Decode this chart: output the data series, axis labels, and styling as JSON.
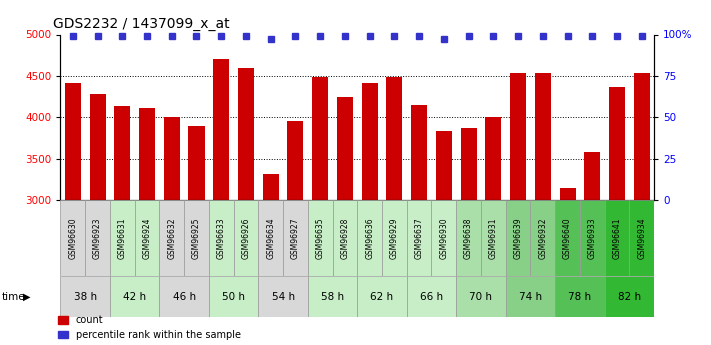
{
  "title": "GDS2232 / 1437099_x_at",
  "samples": [
    "GSM96630",
    "GSM96923",
    "GSM96631",
    "GSM96924",
    "GSM96632",
    "GSM96925",
    "GSM96633",
    "GSM96926",
    "GSM96634",
    "GSM96927",
    "GSM96635",
    "GSM96928",
    "GSM96636",
    "GSM96929",
    "GSM96637",
    "GSM96930",
    "GSM96638",
    "GSM96931",
    "GSM96639",
    "GSM96932",
    "GSM96640",
    "GSM96933",
    "GSM96641",
    "GSM96934"
  ],
  "counts": [
    4420,
    4285,
    4140,
    4110,
    4000,
    3900,
    4700,
    4600,
    3320,
    3960,
    4490,
    4250,
    4420,
    4490,
    4150,
    3840,
    3870,
    4000,
    4530,
    4530,
    3150,
    3580,
    4360,
    4530
  ],
  "percentile_ranks": [
    99,
    99,
    99,
    99,
    99,
    99,
    99,
    99,
    97,
    99,
    99,
    99,
    99,
    99,
    99,
    97,
    99,
    99,
    99,
    99,
    99,
    99,
    99,
    99
  ],
  "time_groups": [
    {
      "label": "38 h",
      "indices": [
        0,
        1
      ],
      "color": "#d8d8d8"
    },
    {
      "label": "42 h",
      "indices": [
        2,
        3
      ],
      "color": "#c8eec8"
    },
    {
      "label": "46 h",
      "indices": [
        4,
        5
      ],
      "color": "#d8d8d8"
    },
    {
      "label": "50 h",
      "indices": [
        6,
        7
      ],
      "color": "#c8eec8"
    },
    {
      "label": "54 h",
      "indices": [
        8,
        9
      ],
      "color": "#d8d8d8"
    },
    {
      "label": "58 h",
      "indices": [
        10,
        11
      ],
      "color": "#c8eec8"
    },
    {
      "label": "62 h",
      "indices": [
        12,
        13
      ],
      "color": "#c8eec8"
    },
    {
      "label": "66 h",
      "indices": [
        14,
        15
      ],
      "color": "#c8eec8"
    },
    {
      "label": "70 h",
      "indices": [
        16,
        17
      ],
      "color": "#aadfaa"
    },
    {
      "label": "74 h",
      "indices": [
        18,
        19
      ],
      "color": "#88d088"
    },
    {
      "label": "78 h",
      "indices": [
        20,
        21
      ],
      "color": "#55c055"
    },
    {
      "label": "82 h",
      "indices": [
        22,
        23
      ],
      "color": "#33b833"
    }
  ],
  "sample_bg_colors": [
    "#d8d8d8",
    "#d8d8d8",
    "#c8eec8",
    "#c8eec8",
    "#d8d8d8",
    "#d8d8d8",
    "#c8eec8",
    "#c8eec8",
    "#d8d8d8",
    "#d8d8d8",
    "#c8eec8",
    "#c8eec8",
    "#c8eec8",
    "#c8eec8",
    "#c8eec8",
    "#c8eec8",
    "#aadfaa",
    "#aadfaa",
    "#88d088",
    "#88d088",
    "#55c055",
    "#55c055",
    "#33b833",
    "#33b833"
  ],
  "bar_color": "#cc0000",
  "marker_color": "#3333cc",
  "ylim_left": [
    3000,
    5000
  ],
  "ylim_right": [
    0,
    100
  ],
  "yticks_left": [
    3000,
    3500,
    4000,
    4500,
    5000
  ],
  "yticks_right": [
    0,
    25,
    50,
    75,
    100
  ],
  "grid_lines": [
    3500,
    4000,
    4500
  ]
}
